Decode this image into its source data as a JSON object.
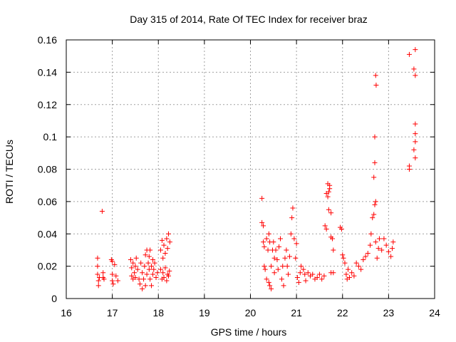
{
  "chart_data": {
    "type": "scatter",
    "title": "Day 315 of 2014, Rate Of TEC Index for receiver braz",
    "xlabel": "GPS time / hours",
    "ylabel": "ROTI / TECUs",
    "xlim": [
      16,
      24
    ],
    "ylim": [
      0,
      0.16
    ],
    "x_ticks": [
      16,
      17,
      18,
      19,
      20,
      21,
      22,
      23,
      24
    ],
    "y_ticks": [
      0,
      0.02,
      0.04,
      0.06,
      0.08,
      0.1,
      0.12,
      0.14,
      0.16
    ],
    "x_tick_labels": [
      "16",
      "17",
      "18",
      "19",
      "20",
      "21",
      "22",
      "23",
      "24"
    ],
    "y_tick_labels": [
      "0",
      "0.02",
      "0.04",
      "0.06",
      "0.08",
      "0.1",
      "0.12",
      "0.14",
      "0.16"
    ],
    "grid": true,
    "marker": "+",
    "color": "#ff0000",
    "series": [
      {
        "name": "ROTI",
        "points": [
          [
            16.68,
            0.025
          ],
          [
            16.68,
            0.02
          ],
          [
            16.68,
            0.015
          ],
          [
            16.7,
            0.011
          ],
          [
            16.7,
            0.008
          ],
          [
            16.72,
            0.013
          ],
          [
            16.78,
            0.054
          ],
          [
            16.8,
            0.016
          ],
          [
            16.8,
            0.013
          ],
          [
            16.82,
            0.012
          ],
          [
            16.98,
            0.024
          ],
          [
            17.0,
            0.023
          ],
          [
            17.0,
            0.015
          ],
          [
            17.0,
            0.011
          ],
          [
            17.02,
            0.009
          ],
          [
            17.05,
            0.021
          ],
          [
            17.08,
            0.014
          ],
          [
            17.12,
            0.011
          ],
          [
            17.4,
            0.024
          ],
          [
            17.42,
            0.019
          ],
          [
            17.42,
            0.014
          ],
          [
            17.45,
            0.022
          ],
          [
            17.45,
            0.012
          ],
          [
            17.48,
            0.016
          ],
          [
            17.5,
            0.02
          ],
          [
            17.5,
            0.013
          ],
          [
            17.52,
            0.025
          ],
          [
            17.55,
            0.018
          ],
          [
            17.58,
            0.012
          ],
          [
            17.6,
            0.009
          ],
          [
            17.62,
            0.022
          ],
          [
            17.65,
            0.016
          ],
          [
            17.65,
            0.006
          ],
          [
            17.68,
            0.012
          ],
          [
            17.7,
            0.02
          ],
          [
            17.72,
            0.008
          ],
          [
            17.72,
            0.027
          ],
          [
            17.75,
            0.015
          ],
          [
            17.75,
            0.03
          ],
          [
            17.78,
            0.022
          ],
          [
            17.8,
            0.018
          ],
          [
            17.8,
            0.026
          ],
          [
            17.82,
            0.012
          ],
          [
            17.82,
            0.03
          ],
          [
            17.85,
            0.02
          ],
          [
            17.85,
            0.008
          ],
          [
            17.88,
            0.024
          ],
          [
            17.88,
            0.015
          ],
          [
            17.9,
            0.018
          ],
          [
            17.92,
            0.022
          ],
          [
            17.95,
            0.013
          ],
          [
            17.98,
            0.016
          ],
          [
            18.05,
            0.03
          ],
          [
            18.05,
            0.018
          ],
          [
            18.08,
            0.036
          ],
          [
            18.08,
            0.012
          ],
          [
            18.1,
            0.025
          ],
          [
            18.1,
            0.016
          ],
          [
            18.12,
            0.033
          ],
          [
            18.12,
            0.013
          ],
          [
            18.15,
            0.028
          ],
          [
            18.15,
            0.019
          ],
          [
            18.18,
            0.037
          ],
          [
            18.18,
            0.011
          ],
          [
            18.2,
            0.031
          ],
          [
            18.2,
            0.015
          ],
          [
            18.22,
            0.04
          ],
          [
            18.22,
            0.014
          ],
          [
            18.24,
            0.017
          ],
          [
            18.25,
            0.035
          ],
          [
            20.25,
            0.062
          ],
          [
            20.25,
            0.047
          ],
          [
            20.28,
            0.045
          ],
          [
            20.28,
            0.035
          ],
          [
            20.3,
            0.032
          ],
          [
            20.3,
            0.02
          ],
          [
            20.32,
            0.018
          ],
          [
            20.35,
            0.012
          ],
          [
            20.35,
            0.037
          ],
          [
            20.38,
            0.03
          ],
          [
            20.4,
            0.01
          ],
          [
            20.4,
            0.04
          ],
          [
            20.42,
            0.035
          ],
          [
            20.42,
            0.008
          ],
          [
            20.45,
            0.006
          ],
          [
            20.45,
            0.02
          ],
          [
            20.48,
            0.03
          ],
          [
            20.5,
            0.035
          ],
          [
            20.52,
            0.016
          ],
          [
            20.52,
            0.025
          ],
          [
            20.55,
            0.03
          ],
          [
            20.58,
            0.024
          ],
          [
            20.6,
            0.018
          ],
          [
            20.62,
            0.032
          ],
          [
            20.65,
            0.037
          ],
          [
            20.68,
            0.012
          ],
          [
            20.7,
            0.02
          ],
          [
            20.72,
            0.008
          ],
          [
            20.75,
            0.025
          ],
          [
            20.78,
            0.03
          ],
          [
            20.8,
            0.02
          ],
          [
            20.82,
            0.015
          ],
          [
            20.85,
            0.026
          ],
          [
            20.88,
            0.04
          ],
          [
            20.9,
            0.05
          ],
          [
            20.92,
            0.056
          ],
          [
            20.95,
            0.037
          ],
          [
            20.98,
            0.025
          ],
          [
            21.0,
            0.034
          ],
          [
            21.02,
            0.013
          ],
          [
            21.05,
            0.01
          ],
          [
            21.08,
            0.016
          ],
          [
            21.1,
            0.02
          ],
          [
            21.15,
            0.018
          ],
          [
            21.18,
            0.015
          ],
          [
            21.2,
            0.011
          ],
          [
            21.25,
            0.016
          ],
          [
            21.3,
            0.014
          ],
          [
            21.35,
            0.015
          ],
          [
            21.4,
            0.012
          ],
          [
            21.45,
            0.013
          ],
          [
            21.5,
            0.015
          ],
          [
            21.55,
            0.012
          ],
          [
            21.6,
            0.014
          ],
          [
            21.62,
            0.045
          ],
          [
            21.65,
            0.043
          ],
          [
            21.65,
            0.065
          ],
          [
            21.68,
            0.063
          ],
          [
            21.68,
            0.071
          ],
          [
            21.7,
            0.066
          ],
          [
            21.7,
            0.055
          ],
          [
            21.72,
            0.07
          ],
          [
            21.72,
            0.068
          ],
          [
            21.75,
            0.053
          ],
          [
            21.75,
            0.038
          ],
          [
            21.78,
            0.037
          ],
          [
            21.8,
            0.03
          ],
          [
            21.75,
            0.016
          ],
          [
            21.8,
            0.016
          ],
          [
            21.95,
            0.044
          ],
          [
            21.98,
            0.043
          ],
          [
            22.0,
            0.027
          ],
          [
            22.02,
            0.025
          ],
          [
            22.05,
            0.022
          ],
          [
            22.08,
            0.015
          ],
          [
            22.1,
            0.012
          ],
          [
            22.12,
            0.018
          ],
          [
            22.15,
            0.013
          ],
          [
            22.2,
            0.016
          ],
          [
            22.25,
            0.014
          ],
          [
            22.3,
            0.022
          ],
          [
            22.35,
            0.02
          ],
          [
            22.4,
            0.018
          ],
          [
            22.45,
            0.024
          ],
          [
            22.5,
            0.026
          ],
          [
            22.55,
            0.028
          ],
          [
            22.6,
            0.033
          ],
          [
            22.62,
            0.04
          ],
          [
            22.65,
            0.05
          ],
          [
            22.68,
            0.052
          ],
          [
            22.7,
            0.058
          ],
          [
            22.72,
            0.06
          ],
          [
            22.72,
            0.035
          ],
          [
            22.75,
            0.025
          ],
          [
            22.78,
            0.031
          ],
          [
            22.8,
            0.037
          ],
          [
            22.85,
            0.03
          ],
          [
            22.9,
            0.037
          ],
          [
            22.95,
            0.033
          ],
          [
            23.0,
            0.029
          ],
          [
            23.05,
            0.026
          ],
          [
            23.08,
            0.031
          ],
          [
            23.1,
            0.035
          ],
          [
            22.72,
            0.138
          ],
          [
            22.73,
            0.132
          ],
          [
            22.7,
            0.1
          ],
          [
            22.7,
            0.084
          ],
          [
            22.68,
            0.075
          ],
          [
            23.45,
            0.151
          ],
          [
            23.55,
            0.142
          ],
          [
            23.58,
            0.154
          ],
          [
            23.58,
            0.138
          ],
          [
            23.45,
            0.08
          ],
          [
            23.45,
            0.082
          ],
          [
            23.58,
            0.108
          ],
          [
            23.58,
            0.102
          ],
          [
            23.58,
            0.097
          ],
          [
            23.55,
            0.092
          ],
          [
            23.58,
            0.087
          ]
        ]
      }
    ]
  }
}
